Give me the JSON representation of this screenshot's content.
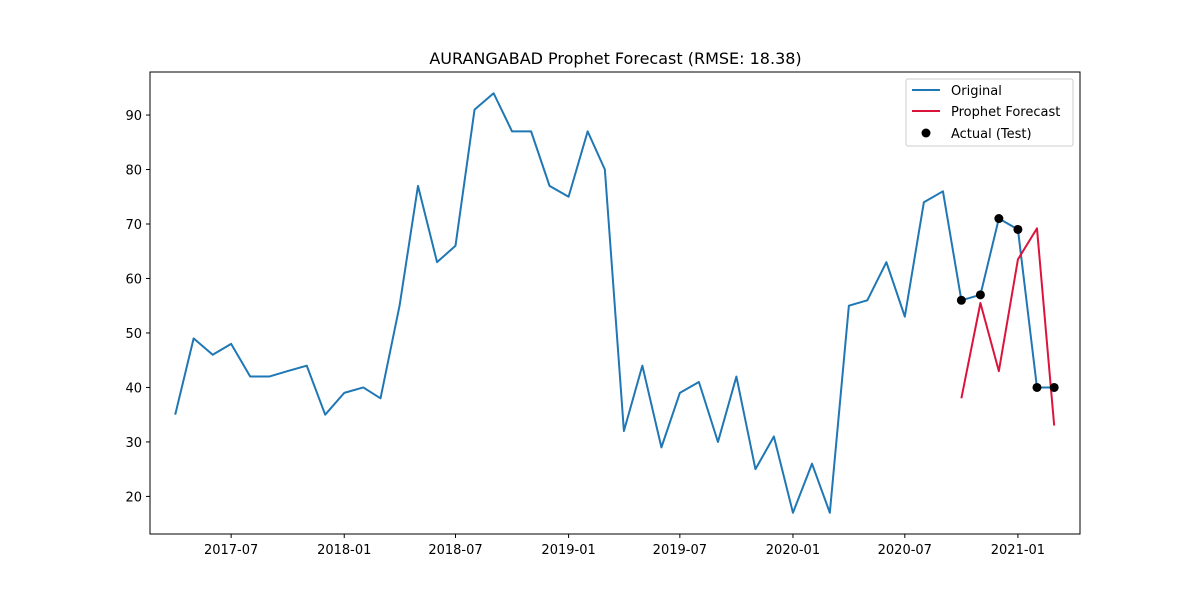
{
  "chart_data": {
    "type": "line",
    "title": "AURANGABAD Prophet Forecast (RMSE: 18.38)",
    "xlabel": "",
    "ylabel": "",
    "xlim": [
      "2017-02-19",
      "2021-04-12"
    ],
    "ylim": [
      13.1,
      97.9
    ],
    "x_ticks": [
      "2017-07-01",
      "2018-01-01",
      "2018-07-01",
      "2019-01-01",
      "2019-07-01",
      "2020-01-01",
      "2020-07-01",
      "2021-01-01"
    ],
    "x_tick_labels": [
      "2017-07",
      "2018-01",
      "2018-07",
      "2019-01",
      "2019-07",
      "2020-01",
      "2020-07",
      "2021-01"
    ],
    "y_ticks": [
      20,
      30,
      40,
      50,
      60,
      70,
      80,
      90
    ],
    "legend": {
      "placement": "top-right"
    },
    "grid": false,
    "series": [
      {
        "name": "Original",
        "kind": "line",
        "color": "#1f77b4",
        "x": [
          "2017-04-01",
          "2017-05-01",
          "2017-06-01",
          "2017-07-01",
          "2017-08-01",
          "2017-09-01",
          "2017-10-01",
          "2017-11-01",
          "2017-12-01",
          "2018-01-01",
          "2018-02-01",
          "2018-03-01",
          "2018-04-01",
          "2018-05-01",
          "2018-06-01",
          "2018-07-01",
          "2018-08-01",
          "2018-09-01",
          "2018-10-01",
          "2018-11-01",
          "2018-12-01",
          "2019-01-01",
          "2019-02-01",
          "2019-03-01",
          "2019-04-01",
          "2019-05-01",
          "2019-06-01",
          "2019-07-01",
          "2019-08-01",
          "2019-09-01",
          "2019-10-01",
          "2019-11-01",
          "2019-12-01",
          "2020-01-01",
          "2020-02-01",
          "2020-03-01",
          "2020-04-01",
          "2020-05-01",
          "2020-06-01",
          "2020-07-01",
          "2020-08-01",
          "2020-09-01",
          "2020-10-01",
          "2020-11-01",
          "2020-12-01",
          "2021-01-01",
          "2021-02-01",
          "2021-03-01"
        ],
        "values": [
          35,
          49,
          46,
          48,
          42,
          42,
          43,
          44,
          35,
          39,
          40,
          38,
          55,
          77,
          63,
          66,
          91,
          94,
          87,
          87,
          77,
          75,
          87,
          80,
          32,
          44,
          29,
          39,
          41,
          30,
          42,
          25,
          31,
          17,
          26,
          17,
          55,
          56,
          63,
          53,
          74,
          76,
          56,
          57,
          71,
          69,
          40,
          40
        ]
      },
      {
        "name": "Prophet Forecast",
        "kind": "line",
        "color": "#dc143c",
        "x": [
          "2020-10-01",
          "2020-11-01",
          "2020-12-01",
          "2021-01-01",
          "2021-02-01",
          "2021-03-01"
        ],
        "values": [
          38,
          55.5,
          43,
          63.5,
          69.2,
          33
        ]
      },
      {
        "name": "Actual (Test)",
        "kind": "scatter",
        "color": "#000000",
        "x": [
          "2020-10-01",
          "2020-11-01",
          "2020-12-01",
          "2021-01-01",
          "2021-02-01",
          "2021-03-01"
        ],
        "values": [
          56,
          57,
          71,
          69,
          40,
          40
        ]
      }
    ]
  }
}
